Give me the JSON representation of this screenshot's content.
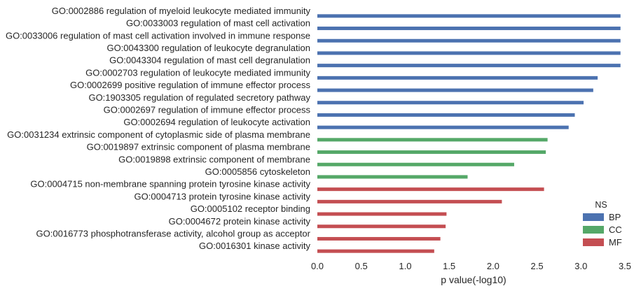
{
  "chart_data": {
    "type": "bar",
    "orientation": "horizontal",
    "xlabel": "p value(-log10)",
    "xlim": [
      0,
      3.5
    ],
    "xticks": [
      "0.0",
      "0.5",
      "1.0",
      "1.5",
      "2.0",
      "2.5",
      "3.0",
      "3.5"
    ],
    "grid": false,
    "legend_placement": "bottom-right",
    "legend": {
      "title": "NS",
      "entries": [
        {
          "name": "BP",
          "color": "#4C72B0"
        },
        {
          "name": "CC",
          "color": "#55A868"
        },
        {
          "name": "MF",
          "color": "#C44E52"
        }
      ]
    },
    "categories": [
      "GO:0002886 regulation of myeloid leukocyte mediated immunity",
      "GO:0033003 regulation of mast cell activation",
      "GO:0033006 regulation of mast cell activation involved in immune response",
      "GO:0043300 regulation of leukocyte degranulation",
      "GO:0043304 regulation of mast cell degranulation",
      "GO:0002703 regulation of leukocyte mediated immunity",
      "GO:0002699 positive regulation of immune effector process",
      "GO:1903305 regulation of regulated secretory pathway",
      "GO:0002697 regulation of immune effector process",
      "GO:0002694 regulation of leukocyte activation",
      "GO:0031234 extrinsic component of cytoplasmic side of plasma membrane",
      "GO:0019897 extrinsic component of plasma membrane",
      "GO:0019898 extrinsic component of membrane",
      "GO:0005856 cytoskeleton",
      "GO:0004715 non-membrane spanning protein tyrosine kinase activity",
      "GO:0004713 protein tyrosine kinase activity",
      "GO:0005102 receptor binding",
      "GO:0004672 protein kinase activity",
      "GO:0016773 phosphotransferase activity, alcohol group as acceptor",
      "GO:0016301 kinase activity"
    ],
    "groups": [
      "BP",
      "BP",
      "BP",
      "BP",
      "BP",
      "BP",
      "BP",
      "BP",
      "BP",
      "BP",
      "CC",
      "CC",
      "CC",
      "CC",
      "MF",
      "MF",
      "MF",
      "MF",
      "MF",
      "MF"
    ],
    "values": [
      3.45,
      3.45,
      3.45,
      3.45,
      3.45,
      3.19,
      3.14,
      3.03,
      2.93,
      2.86,
      2.62,
      2.6,
      2.24,
      1.71,
      2.58,
      2.1,
      1.47,
      1.46,
      1.4,
      1.33
    ]
  }
}
